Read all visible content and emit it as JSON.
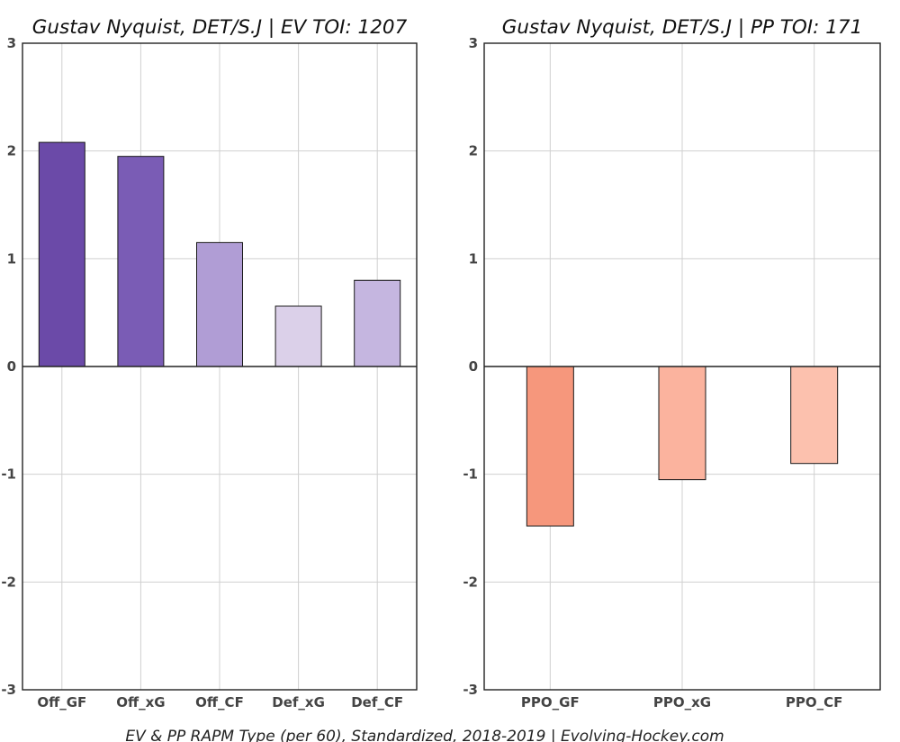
{
  "footer": "EV & PP RAPM Type (per 60), Standardized, 2018-2019   |   Evolving-Hockey.com",
  "chart_data": [
    {
      "type": "bar",
      "title": "Gustav Nyquist, DET/S.J  |  EV TOI: 1207",
      "xlabel": "",
      "ylabel": "",
      "categories": [
        "Off_GF",
        "Off_xG",
        "Off_CF",
        "Def_xG",
        "Def_CF"
      ],
      "values": [
        2.08,
        1.95,
        1.15,
        0.56,
        0.8
      ],
      "colors": [
        "#6b4aa8",
        "#7a5cb5",
        "#b09dd5",
        "#dbd0e9",
        "#c5b6e0"
      ],
      "ylim": [
        -3,
        3
      ],
      "yticks": [
        -3,
        -2,
        -1,
        0,
        1,
        2,
        3
      ],
      "grid": true
    },
    {
      "type": "bar",
      "title": "Gustav Nyquist, DET/S.J  |  PP TOI: 171",
      "xlabel": "",
      "ylabel": "",
      "categories": [
        "PPO_GF",
        "PPO_xG",
        "PPO_CF"
      ],
      "values": [
        -1.48,
        -1.05,
        -0.9
      ],
      "colors": [
        "#f6977c",
        "#fbb39e",
        "#fcc1ae"
      ],
      "ylim": [
        -3,
        3
      ],
      "yticks": [
        -3,
        -2,
        -1,
        0,
        1,
        2,
        3
      ],
      "grid": true
    }
  ]
}
